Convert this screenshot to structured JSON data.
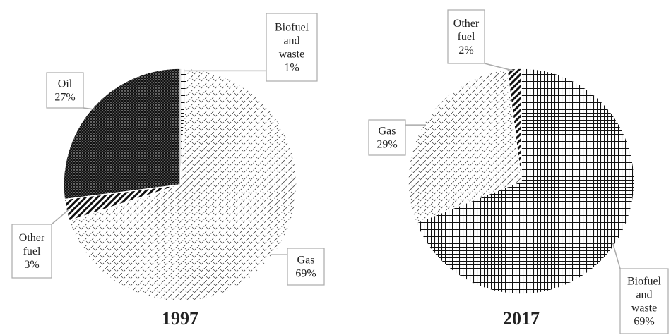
{
  "chart_data": [
    {
      "type": "pie",
      "title": "1997",
      "categories": [
        "Biofuel and waste",
        "Gas",
        "Other fuel",
        "Oil"
      ],
      "values": [
        1,
        69,
        3,
        27
      ],
      "value_labels": [
        "1%",
        "69%",
        "3%",
        "27%"
      ],
      "patterns": [
        "grid",
        "hatch",
        "stripes",
        "dots"
      ]
    },
    {
      "type": "pie",
      "title": "2017",
      "categories": [
        "Biofuel and waste",
        "Gas",
        "Other fuel"
      ],
      "values": [
        69,
        29,
        2
      ],
      "value_labels": [
        "69%",
        "29%",
        "2%"
      ],
      "patterns": [
        "grid",
        "hatch",
        "stripes"
      ]
    }
  ]
}
